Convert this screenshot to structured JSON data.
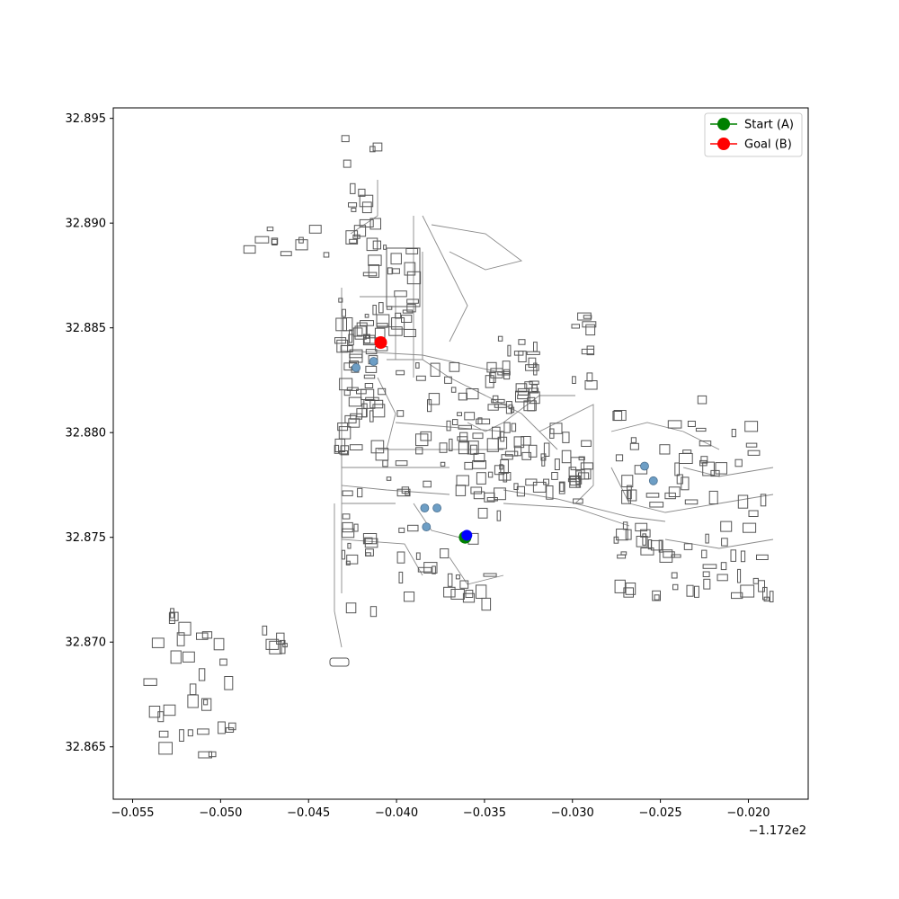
{
  "chart_data": {
    "type": "scatter",
    "title": "",
    "xlabel": "",
    "ylabel": "",
    "xlim": [
      -0.0561,
      -0.0166
    ],
    "ylim": [
      32.8625,
      32.8955
    ],
    "x_offset_label": "−1.172e2",
    "x_ticks": [
      {
        "value": -0.055,
        "label": "−0.055"
      },
      {
        "value": -0.05,
        "label": "−0.050"
      },
      {
        "value": -0.045,
        "label": "−0.045"
      },
      {
        "value": -0.04,
        "label": "−0.040"
      },
      {
        "value": -0.035,
        "label": "−0.035"
      },
      {
        "value": -0.03,
        "label": "−0.030"
      },
      {
        "value": -0.025,
        "label": "−0.025"
      },
      {
        "value": -0.02,
        "label": "−0.020"
      }
    ],
    "y_ticks": [
      {
        "value": 32.865,
        "label": "32.865"
      },
      {
        "value": 32.87,
        "label": "32.870"
      },
      {
        "value": 32.875,
        "label": "32.875"
      },
      {
        "value": 32.88,
        "label": "32.880"
      },
      {
        "value": 32.885,
        "label": "32.885"
      },
      {
        "value": 32.89,
        "label": "32.890"
      },
      {
        "value": 32.895,
        "label": "32.895"
      }
    ],
    "grid": false,
    "legend_position": "top-right",
    "series": [
      {
        "name": "Start (A)",
        "color": "#008000",
        "x": [
          -0.0361
        ],
        "y": [
          32.875
        ]
      },
      {
        "name": "Goal (B)",
        "color": "#ff0000",
        "x": [
          -0.0409
        ],
        "y": [
          32.8843
        ]
      }
    ],
    "extra_points": [
      {
        "color": "#0000ff",
        "x": -0.036,
        "y": 32.8751
      }
    ],
    "poi_points": {
      "color": "#6d9ec5",
      "points": [
        [
          -0.0423,
          32.8831
        ],
        [
          -0.0413,
          32.8834
        ],
        [
          -0.0384,
          32.8764
        ],
        [
          -0.0377,
          32.8764
        ],
        [
          -0.0383,
          32.8755
        ],
        [
          -0.0259,
          32.8784
        ],
        [
          -0.0254,
          32.8777
        ]
      ]
    }
  }
}
